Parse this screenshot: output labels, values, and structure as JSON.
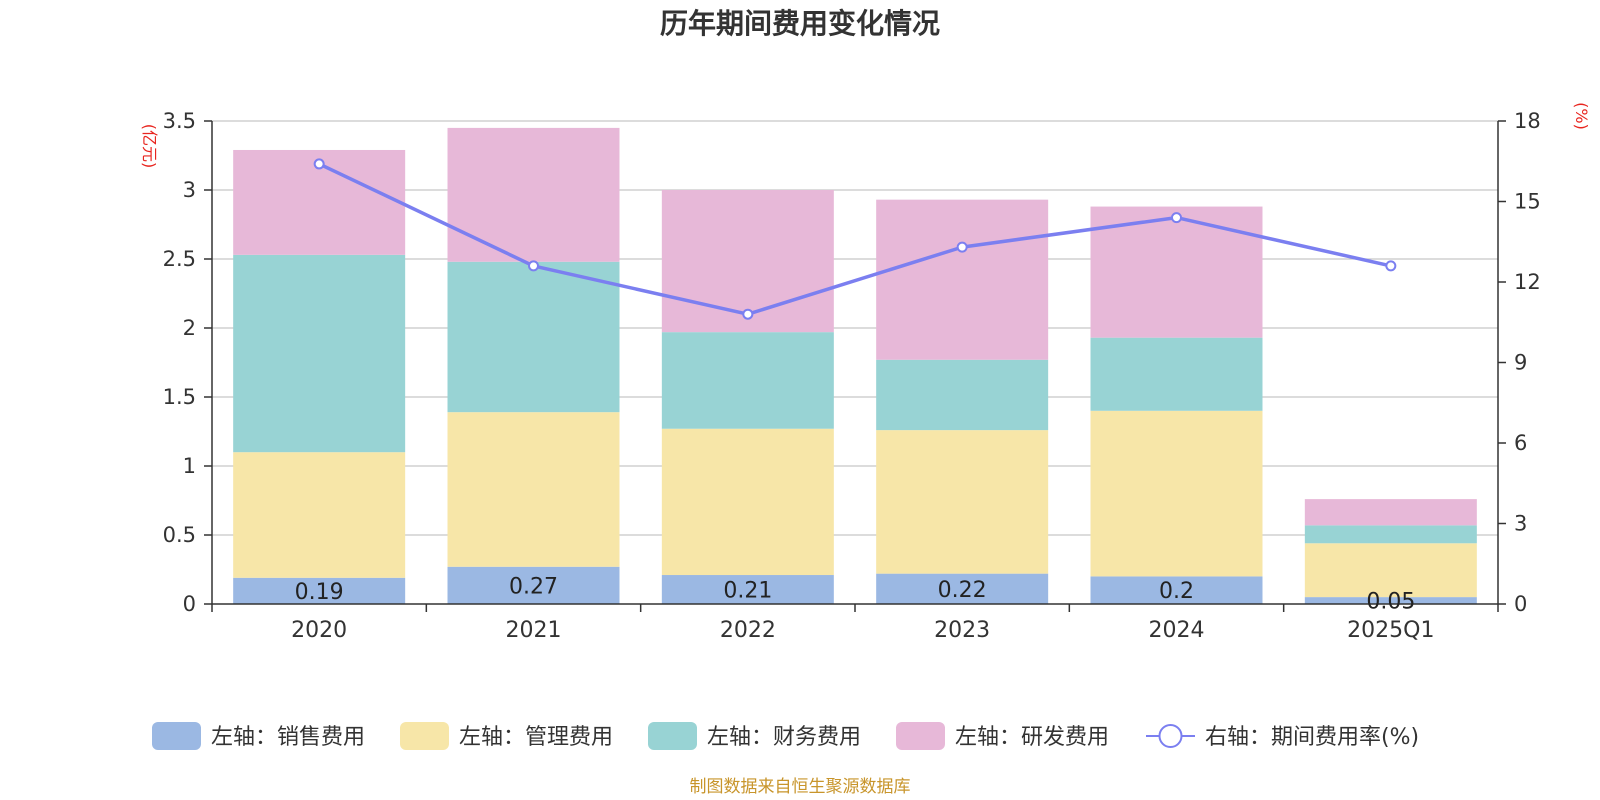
{
  "source": "制图数据来自恒生聚源数据库",
  "chart_data": {
    "type": "bar",
    "stacked": true,
    "title": "历年期间费用变化情况",
    "categories": [
      "2020",
      "2021",
      "2022",
      "2023",
      "2024",
      "2025Q1"
    ],
    "left_axis": {
      "unit": "(亿元)",
      "ylim": [
        0,
        3.5
      ],
      "ticks": [
        "0",
        "0.5",
        "1",
        "1.5",
        "2",
        "2.5",
        "3",
        "3.5"
      ]
    },
    "right_axis": {
      "unit": "(%)",
      "ylim": [
        0,
        18
      ],
      "ticks": [
        "0",
        "3",
        "6",
        "9",
        "12",
        "15",
        "18"
      ]
    },
    "series": [
      {
        "name": "左轴：销售费用",
        "type": "bar",
        "axis": "left",
        "color": "#9bb8e3",
        "values": [
          0.19,
          0.27,
          0.21,
          0.22,
          0.2,
          0.05
        ],
        "labels": [
          "0.19",
          "0.27",
          "0.21",
          "0.22",
          "0.2",
          "0.05"
        ]
      },
      {
        "name": "左轴：管理费用",
        "type": "bar",
        "axis": "left",
        "color": "#f7e6a8",
        "values": [
          0.91,
          1.12,
          1.06,
          1.04,
          1.2,
          0.39
        ]
      },
      {
        "name": "左轴：财务费用",
        "type": "bar",
        "axis": "left",
        "color": "#98d3d4",
        "values": [
          1.43,
          1.09,
          0.7,
          0.51,
          0.53,
          0.13
        ]
      },
      {
        "name": "左轴：研发费用",
        "type": "bar",
        "axis": "left",
        "color": "#e7b8d8",
        "values": [
          0.76,
          0.97,
          1.03,
          1.16,
          0.95,
          0.19
        ]
      },
      {
        "name": "右轴：期间费用率(%)",
        "type": "line",
        "axis": "right",
        "color": "#7b7ff0",
        "values": [
          16.4,
          12.6,
          10.8,
          13.3,
          14.4,
          12.6
        ]
      }
    ],
    "grid": true,
    "legend_position": "bottom"
  }
}
